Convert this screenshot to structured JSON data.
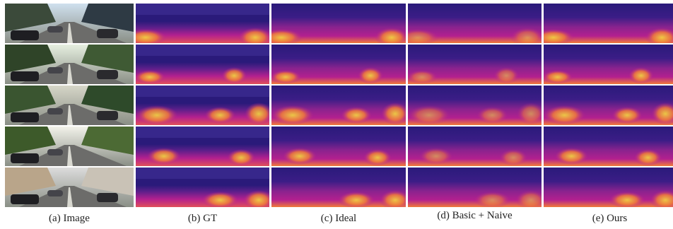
{
  "captions": [
    {
      "id": "image",
      "label": "(a) Image"
    },
    {
      "id": "gt",
      "label": "(b) GT"
    },
    {
      "id": "ideal",
      "label": "(c) Ideal"
    },
    {
      "id": "basic_naive",
      "label": "(d) Basic + Naive"
    },
    {
      "id": "ours",
      "label": "(e) Ours"
    }
  ],
  "rows": 5,
  "colors": {
    "depth_far": "#2a1a7a",
    "depth_mid": "#b3208f",
    "depth_near": "#f07a3a",
    "depth_closest": "#f7e33a",
    "background": "#ffffff"
  }
}
